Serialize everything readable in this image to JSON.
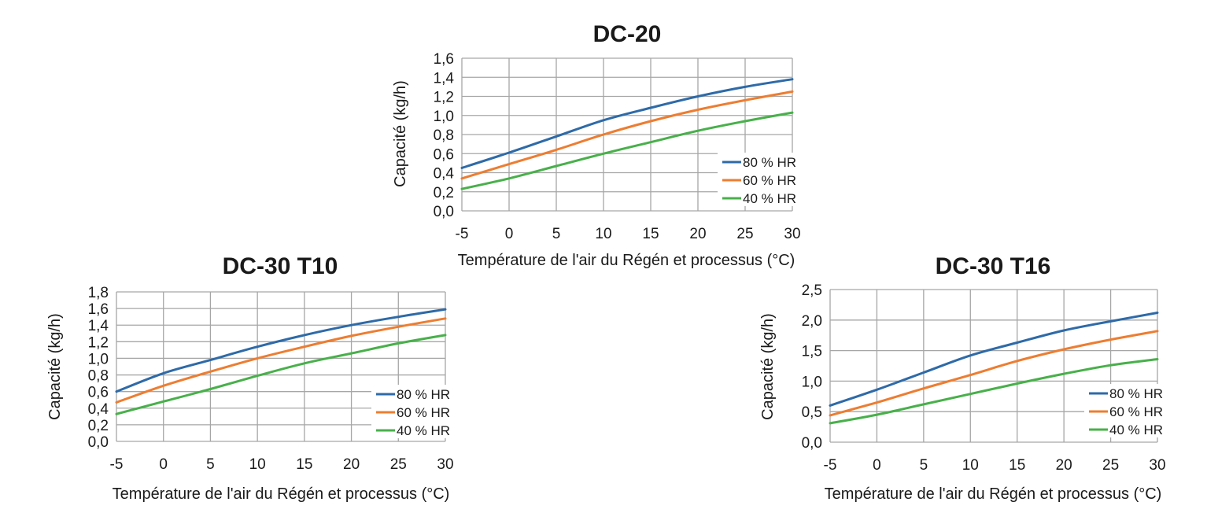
{
  "colors": {
    "80": "#2e6aa8",
    "60": "#ed7d31",
    "40": "#48b04a"
  },
  "chart_data": [
    {
      "type": "line",
      "title": "DC-20",
      "xlabel": "Température de l'air du Régén et processus (°C)",
      "ylabel": "Capacité (kg/h)",
      "x": [
        -5,
        0,
        5,
        10,
        15,
        20,
        25,
        30
      ],
      "xlim": [
        -5,
        30
      ],
      "ylim": [
        0,
        1.6
      ],
      "yticks": [
        "0,0",
        "0,2",
        "0,4",
        "0,6",
        "0,8",
        "1,0",
        "1,2",
        "1,4",
        "1,6"
      ],
      "xticks": [
        "-5",
        "0",
        "5",
        "10",
        "15",
        "20",
        "25",
        "30"
      ],
      "grid": true,
      "legend_position": "bottom-right",
      "series": [
        {
          "name": "80 % HR",
          "color": "#2e6aa8",
          "values": [
            0.45,
            0.61,
            0.78,
            0.95,
            1.08,
            1.2,
            1.3,
            1.38
          ]
        },
        {
          "name": "60 % HR",
          "color": "#ed7d31",
          "values": [
            0.34,
            0.49,
            0.64,
            0.8,
            0.94,
            1.06,
            1.16,
            1.25
          ]
        },
        {
          "name": "40 % HR",
          "color": "#48b04a",
          "values": [
            0.23,
            0.34,
            0.47,
            0.6,
            0.72,
            0.84,
            0.94,
            1.03
          ]
        }
      ]
    },
    {
      "type": "line",
      "title": "DC-30 T10",
      "xlabel": "Température de l'air du Régén et processus (°C)",
      "ylabel": "Capacité (kg/h)",
      "x": [
        -5,
        0,
        5,
        10,
        15,
        20,
        25,
        30
      ],
      "xlim": [
        -5,
        30
      ],
      "ylim": [
        0,
        1.8
      ],
      "yticks": [
        "0,0",
        "0,2",
        "0,4",
        "0,6",
        "0,8",
        "1,0",
        "1,2",
        "1,4",
        "1,6",
        "1,8"
      ],
      "xticks": [
        "-5",
        "0",
        "5",
        "10",
        "15",
        "20",
        "25",
        "30"
      ],
      "grid": true,
      "legend_position": "bottom-right",
      "series": [
        {
          "name": "80 % HR",
          "color": "#2e6aa8",
          "values": [
            0.6,
            0.82,
            0.98,
            1.14,
            1.28,
            1.4,
            1.5,
            1.59
          ]
        },
        {
          "name": "60 % HR",
          "color": "#ed7d31",
          "values": [
            0.47,
            0.67,
            0.84,
            1.0,
            1.14,
            1.27,
            1.38,
            1.48
          ]
        },
        {
          "name": "40 % HR",
          "color": "#48b04a",
          "values": [
            0.33,
            0.48,
            0.63,
            0.79,
            0.94,
            1.06,
            1.18,
            1.28
          ]
        }
      ]
    },
    {
      "type": "line",
      "title": "DC-30 T16",
      "xlabel": "Température de l'air du Régén et processus (°C)",
      "ylabel": "Capacité (kg/h)",
      "x": [
        -5,
        0,
        5,
        10,
        15,
        20,
        25,
        30
      ],
      "xlim": [
        -5,
        30
      ],
      "ylim": [
        0,
        2.5
      ],
      "yticks": [
        "0,0",
        "0,5",
        "1,0",
        "1,5",
        "2,0",
        "2,5"
      ],
      "xticks": [
        "-5",
        "0",
        "5",
        "10",
        "15",
        "20",
        "25",
        "30"
      ],
      "grid": true,
      "legend_position": "bottom-right",
      "series": [
        {
          "name": "80 % HR",
          "color": "#2e6aa8",
          "values": [
            0.6,
            0.86,
            1.14,
            1.42,
            1.63,
            1.83,
            1.98,
            2.12
          ]
        },
        {
          "name": "60 % HR",
          "color": "#ed7d31",
          "values": [
            0.44,
            0.65,
            0.88,
            1.1,
            1.33,
            1.52,
            1.68,
            1.82
          ]
        },
        {
          "name": "40 % HR",
          "color": "#48b04a",
          "values": [
            0.31,
            0.45,
            0.62,
            0.79,
            0.96,
            1.12,
            1.26,
            1.36
          ]
        }
      ]
    }
  ]
}
